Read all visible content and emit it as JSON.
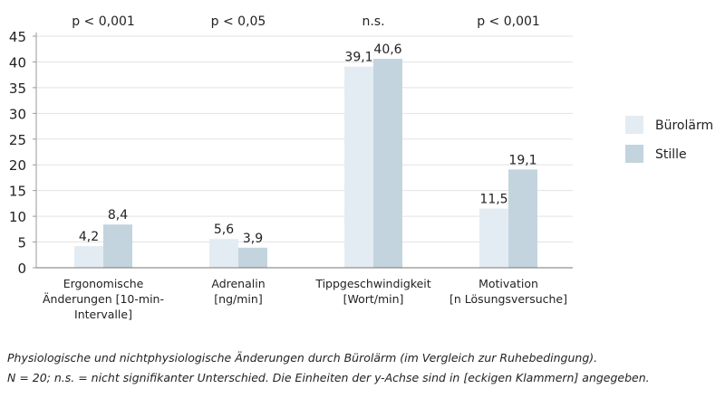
{
  "chart_data": {
    "type": "bar",
    "categories": [
      [
        "Ergonomische",
        "Änderungen [10-min-",
        "Intervalle]"
      ],
      [
        "Adrenalin",
        "[ng/min]"
      ],
      [
        "Tippgeschwindigkeit",
        "[Wort/min]"
      ],
      [
        "Motivation",
        "[n Lösungsversuche]"
      ]
    ],
    "significance": [
      "p < 0,001",
      "p < 0,05",
      "n.s.",
      "p < 0,001"
    ],
    "series": [
      {
        "name": "Bürolärm",
        "color": "#e4ecf3",
        "values": [
          4.2,
          5.6,
          39.1,
          11.5
        ],
        "labels": [
          "4,2",
          "5,6",
          "39,1",
          "11,5"
        ]
      },
      {
        "name": "Stille",
        "color": "#c3d4df",
        "values": [
          8.4,
          3.9,
          40.6,
          19.1
        ],
        "labels": [
          "8,4",
          "3,9",
          "40,6",
          "19,1"
        ]
      }
    ],
    "ylim": [
      0,
      45
    ],
    "yticks": [
      0,
      5,
      10,
      15,
      20,
      25,
      30,
      35,
      40,
      45
    ],
    "grid": true,
    "legend": "right"
  },
  "caption": {
    "line1": "Physiologische und nichtphysiologische Änderungen durch Bürolärm (im Vergleich zur Ruhebedingung).",
    "line2": "N = 20; n.s. = nicht signifikanter Unterschied. Die Einheiten der y-Achse sind in [eckigen Klammern] angegeben."
  }
}
